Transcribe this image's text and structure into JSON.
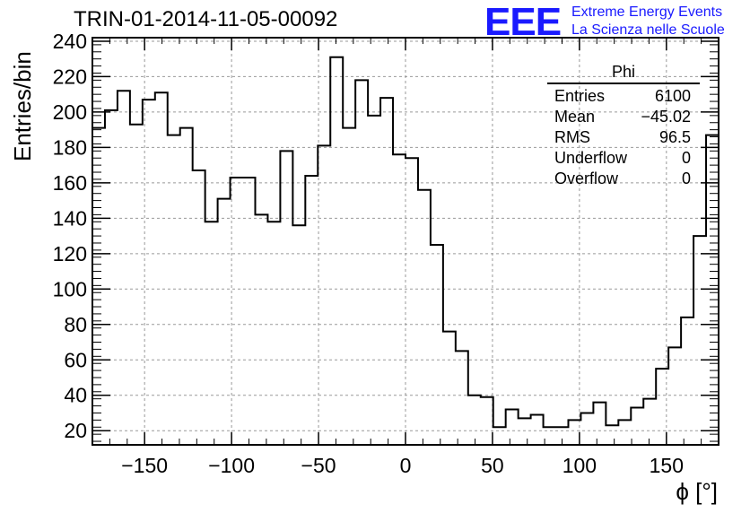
{
  "header": {
    "title": "TRIN-01-2014-11-05-00092",
    "logo_text": "EEE",
    "logo_line1": "Extreme Energy Events",
    "logo_line2": "La Scienza nelle Scuole"
  },
  "stats_box": {
    "name": "Phi",
    "rows": [
      {
        "label": "Entries",
        "value": "6100"
      },
      {
        "label": "Mean",
        "value": "−45.02"
      },
      {
        "label": "RMS",
        "value": "96.5"
      },
      {
        "label": "Underflow",
        "value": "0"
      },
      {
        "label": "Overflow",
        "value": "0"
      }
    ]
  },
  "chart_data": {
    "type": "histogram",
    "title": "TRIN-01-2014-11-05-00092",
    "xlabel": "ϕ [°]",
    "ylabel": "Entries/bin",
    "xlim": [
      -180,
      180
    ],
    "ylim": [
      12,
      242
    ],
    "bin_width": 7.2,
    "x_ticks": [
      -150,
      -100,
      -50,
      0,
      50,
      100,
      150
    ],
    "x_tick_labels": [
      "−150",
      "−100",
      "−50",
      "0",
      "50",
      "100",
      "150"
    ],
    "y_ticks": [
      20,
      40,
      60,
      80,
      100,
      120,
      140,
      160,
      180,
      200,
      220,
      240
    ],
    "grid": true,
    "colors": {
      "line": "#000000",
      "grid": "#999999",
      "logo": "#1a1aff"
    },
    "bin_edges_start": -180,
    "values": [
      191,
      201,
      212,
      193,
      207,
      211,
      187,
      191,
      167,
      138,
      151,
      163,
      163,
      142,
      138,
      178,
      136,
      164,
      181,
      231,
      191,
      218,
      198,
      208,
      176,
      174,
      156,
      125,
      76,
      65,
      40,
      39,
      22,
      32,
      27,
      29,
      22,
      22,
      26,
      30,
      36,
      23,
      26,
      33,
      38,
      55,
      67,
      84,
      130,
      187
    ]
  }
}
